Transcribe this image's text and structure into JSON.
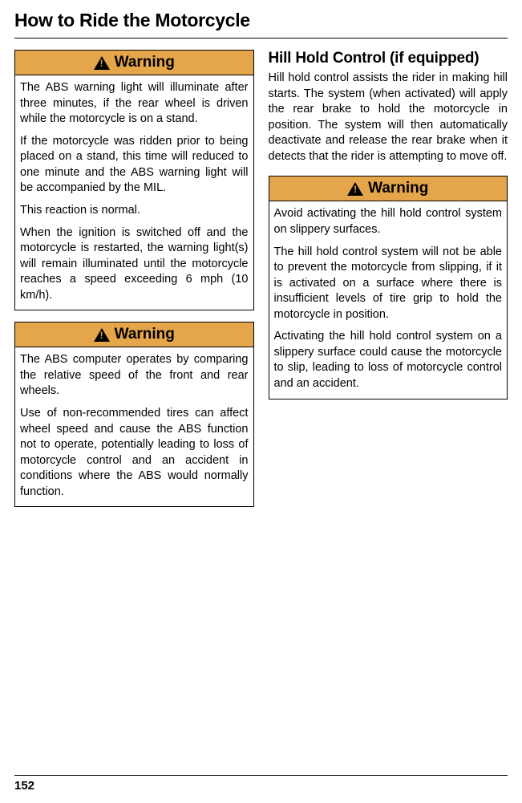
{
  "page_title": "How to Ride the Motorcycle",
  "page_number": "152",
  "warning_label": "Warning",
  "left_column": {
    "warning1": {
      "p1": "The ABS warning light will illuminate after three minutes, if the rear wheel is driven while the motorcycle is on a stand.",
      "p2": "If the motorcycle was ridden prior to being placed on a stand, this time will reduced to one minute and the ABS warning light will be accompanied by the MIL.",
      "p3": "This reaction is normal.",
      "p4": "When the ignition is switched off and the motorcycle is restarted, the warning light(s) will remain illuminated until the motorcycle reaches a speed exceeding 6 mph (10 km/h)."
    },
    "warning2": {
      "p1": "The ABS computer operates by comparing the relative speed of the front and rear wheels.",
      "p2": "Use of non-recommended tires can affect wheel speed and cause the ABS function not to operate, potentially leading to loss of motorcycle control and an accident in conditions where the ABS would normally function."
    }
  },
  "right_column": {
    "heading": "Hill Hold Control (if equipped)",
    "intro": "Hill hold control assists the rider in making hill starts. The system (when activated) will apply the rear brake to hold the motorcycle in position. The system will then automatically deactivate and release the rear brake when it detects that the rider is attempting to move off.",
    "warning1": {
      "p1": "Avoid activating the hill hold control system on slippery surfaces.",
      "p2": "The hill hold control system will not be able to prevent the motorcycle from slipping, if it is activated on a surface where there is insufficient levels of tire grip to hold the motorcycle in position.",
      "p3": "Activating the hill hold control system on a slippery surface could cause the motorcycle to slip, leading to loss of motorcycle control and an accident."
    }
  },
  "colors": {
    "warning_header_bg": "#e5a54a",
    "border": "#000000",
    "text": "#000000",
    "background": "#ffffff"
  }
}
